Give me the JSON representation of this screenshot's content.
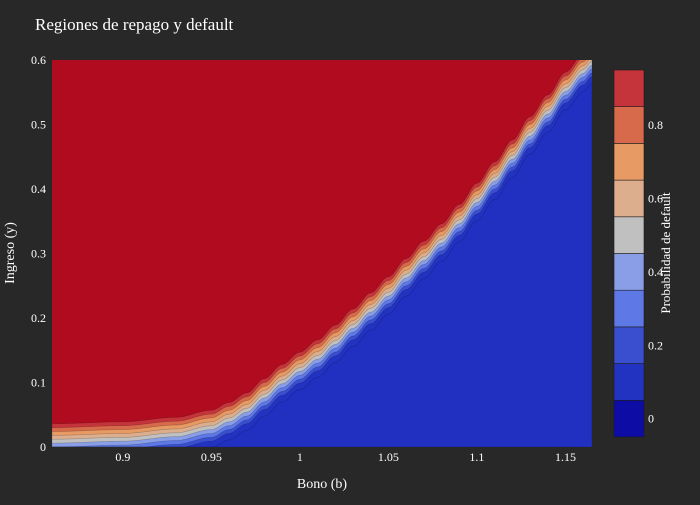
{
  "chart_data": {
    "type": "heatmap",
    "subtype": "contour",
    "title": "Regiones de repago y default",
    "xlabel": "Bono (b)",
    "ylabel": "Ingreso (y)",
    "xlim": [
      0.86,
      1.165
    ],
    "ylim": [
      0,
      0.6
    ],
    "x_ticks": [
      0.9,
      0.95,
      1,
      1.05,
      1.1,
      1.15
    ],
    "x_tick_labels": [
      "0.9",
      "0.95",
      "1",
      "1.05",
      "1.1",
      "1.15"
    ],
    "y_ticks": [
      0,
      0.1,
      0.2,
      0.3,
      0.4,
      0.5,
      0.6
    ],
    "y_tick_labels": [
      "0",
      "0.1",
      "0.2",
      "0.3",
      "0.4",
      "0.5",
      "0.6"
    ],
    "grid": false,
    "colorbar": {
      "title": "Probabilidad de default",
      "range": [
        -0.05,
        0.95
      ],
      "ticks": [
        0,
        0.2,
        0.4,
        0.6,
        0.8
      ],
      "tick_labels": [
        "0",
        "0.2",
        "0.4",
        "0.6",
        "0.8"
      ],
      "levels": [
        -0.05,
        0.05,
        0.15,
        0.25,
        0.35,
        0.45,
        0.55,
        0.65,
        0.75,
        0.85,
        0.95
      ],
      "colors": [
        "#0d0da6",
        "#2233c2",
        "#3a4fd0",
        "#5e78e6",
        "#8a9ee8",
        "#c0c0c0",
        "#dcae8e",
        "#e79a63",
        "#d66a4b",
        "#c4343a",
        "#b10b1f"
      ]
    },
    "default_boundary": {
      "description_values": "income threshold at which default probability crosses 0.5, by bond level",
      "x": [
        0.86,
        0.9,
        0.93,
        0.95,
        0.96,
        0.97,
        0.98,
        0.99,
        1.0,
        1.01,
        1.02,
        1.03,
        1.04,
        1.05,
        1.06,
        1.07,
        1.08,
        1.09,
        1.1,
        1.11,
        1.12,
        1.13,
        1.14,
        1.15,
        1.16,
        1.165
      ],
      "y": [
        0.012,
        0.015,
        0.022,
        0.033,
        0.045,
        0.06,
        0.082,
        0.104,
        0.123,
        0.142,
        0.165,
        0.19,
        0.215,
        0.24,
        0.268,
        0.295,
        0.322,
        0.352,
        0.385,
        0.418,
        0.452,
        0.488,
        0.522,
        0.557,
        0.585,
        0.598
      ],
      "band_width": 0.006
    },
    "colorscale_note": "default region above the boundary (probability ~0.9), repayment region below (probability ~0.1)"
  }
}
